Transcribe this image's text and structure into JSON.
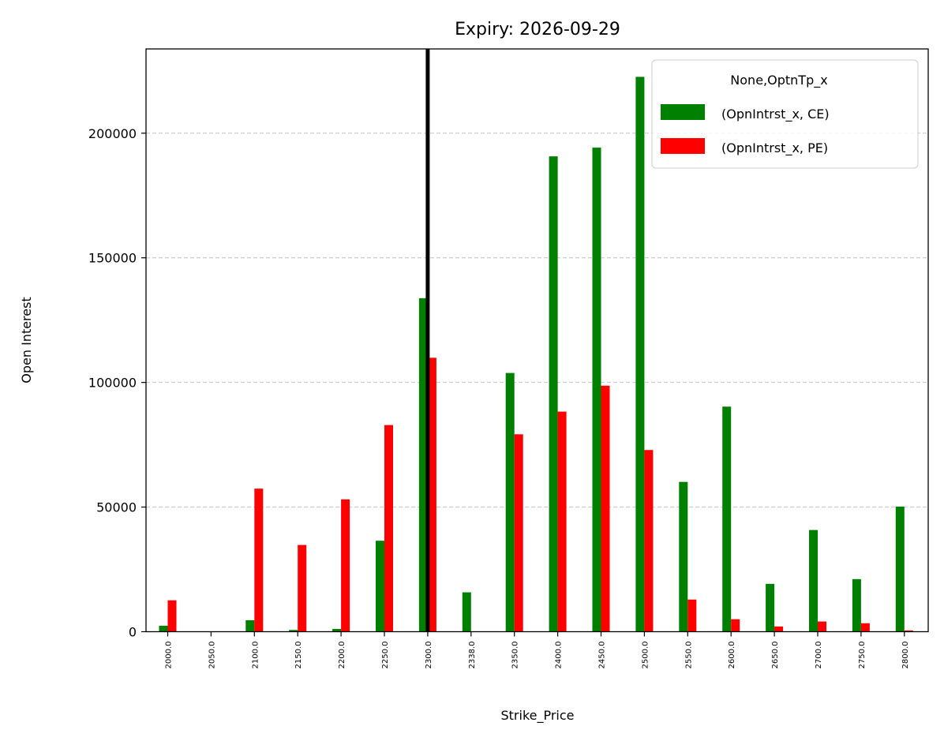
{
  "chart_data": {
    "type": "bar",
    "title": "Expiry: 2026-09-29",
    "xlabel": "Strike_Price",
    "ylabel": "Open Interest",
    "categories": [
      "2000.0",
      "2050.0",
      "2100.0",
      "2150.0",
      "2200.0",
      "2250.0",
      "2300.0",
      "2338.0",
      "2350.0",
      "2400.0",
      "2450.0",
      "2500.0",
      "2550.0",
      "2600.0",
      "2650.0",
      "2700.0",
      "2750.0",
      "2800.0"
    ],
    "series": [
      {
        "name": "(OpnIntrst_x, CE)",
        "color": "#008000",
        "values": [
          2400,
          0,
          4600,
          700,
          1100,
          36500,
          133800,
          15800,
          103800,
          190700,
          194200,
          222600,
          60100,
          90300,
          19200,
          40800,
          21100,
          50200
        ]
      },
      {
        "name": "(OpnIntrst_x, PE)",
        "color": "#ff0000",
        "values": [
          12600,
          0,
          57400,
          34800,
          53100,
          82900,
          109900,
          0,
          79200,
          88300,
          98700,
          72900,
          12900,
          5000,
          2100,
          4100,
          3400,
          500
        ]
      }
    ],
    "ylim": [
      0,
      233800
    ],
    "yticks": [
      "0",
      "50000",
      "100000",
      "150000",
      "200000"
    ],
    "ytick_values": [
      0,
      50000,
      100000,
      150000,
      200000
    ],
    "grid": "y-dashed",
    "legend": {
      "title": "None,OptnTp_x",
      "position": "top-right"
    },
    "vertical_line": {
      "category": "2300.0",
      "color": "#000000"
    }
  }
}
